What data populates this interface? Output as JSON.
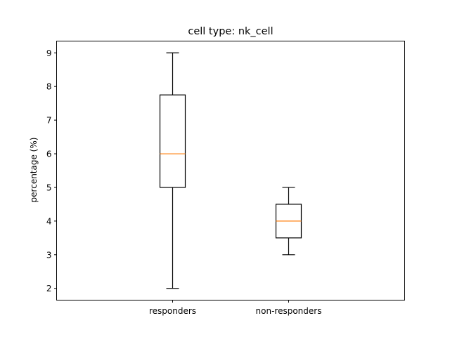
{
  "chart_data": {
    "type": "boxplot",
    "title": "cell type: nk_cell",
    "xlabel": "",
    "ylabel": "percentage (%)",
    "ylim": [
      1.65,
      9.35
    ],
    "yticks": [
      2,
      3,
      4,
      5,
      6,
      7,
      8,
      9
    ],
    "grid": false,
    "categories": [
      "responders",
      "non-responders"
    ],
    "boxes": [
      {
        "label": "responders",
        "whisker_low": 2,
        "q1": 5,
        "median": 6,
        "q3": 7.75,
        "whisker_high": 9
      },
      {
        "label": "non-responders",
        "whisker_low": 3,
        "q1": 3.5,
        "median": 4,
        "q3": 4.5,
        "whisker_high": 5
      }
    ],
    "colors": {
      "box": "#000000",
      "median": "#ff7f0e",
      "axes": "#000000"
    }
  }
}
